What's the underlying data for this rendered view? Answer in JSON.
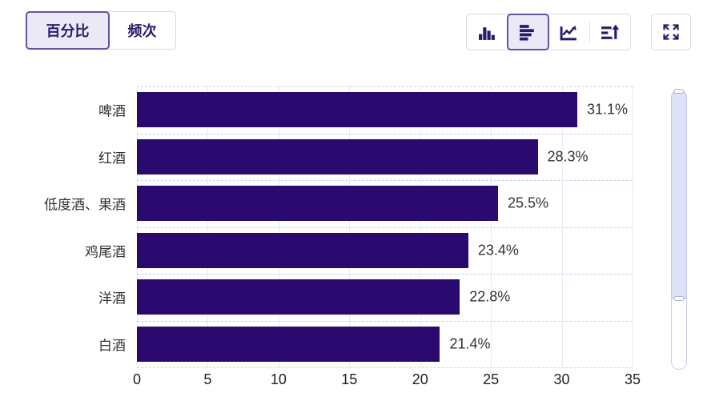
{
  "colors": {
    "bar": "#2a0a6e",
    "accent_text": "#2b1a6b",
    "selected_border": "#6253a3",
    "selected_bg": "#ece9f7",
    "grid_vertical": "#e7eaf8",
    "grid_horizontal": "#ccd3ee",
    "axis_text": "#222",
    "label_text": "#333"
  },
  "header": {
    "view_toggle": [
      {
        "label": "百分比",
        "selected": true
      },
      {
        "label": "频次",
        "selected": false
      }
    ],
    "chart_type_buttons": [
      {
        "name": "vertical-bar-chart",
        "selected": false
      },
      {
        "name": "horizontal-bar-chart",
        "selected": true
      },
      {
        "name": "line-chart",
        "selected": false
      },
      {
        "name": "sort-order",
        "selected": false
      }
    ],
    "fullscreen_button": {
      "name": "fullscreen"
    }
  },
  "chart_data": {
    "type": "bar",
    "orientation": "horizontal",
    "title": "",
    "categories": [
      "啤酒",
      "红酒",
      "低度酒、果酒",
      "鸡尾酒",
      "洋酒",
      "白酒"
    ],
    "values": [
      31.1,
      28.3,
      25.5,
      23.4,
      22.8,
      21.4
    ],
    "value_labels": [
      "31.1%",
      "28.3%",
      "25.5%",
      "23.4%",
      "22.8%",
      "21.4%"
    ],
    "xlim": [
      0,
      35
    ],
    "xticks": [
      "0",
      "5",
      "10",
      "15",
      "20",
      "25",
      "30",
      "35"
    ],
    "grid": true,
    "legend_position": "none",
    "bar_color": "#2a0a6e"
  },
  "scrollbar": {
    "visible": true,
    "thumb_from_top": true
  }
}
